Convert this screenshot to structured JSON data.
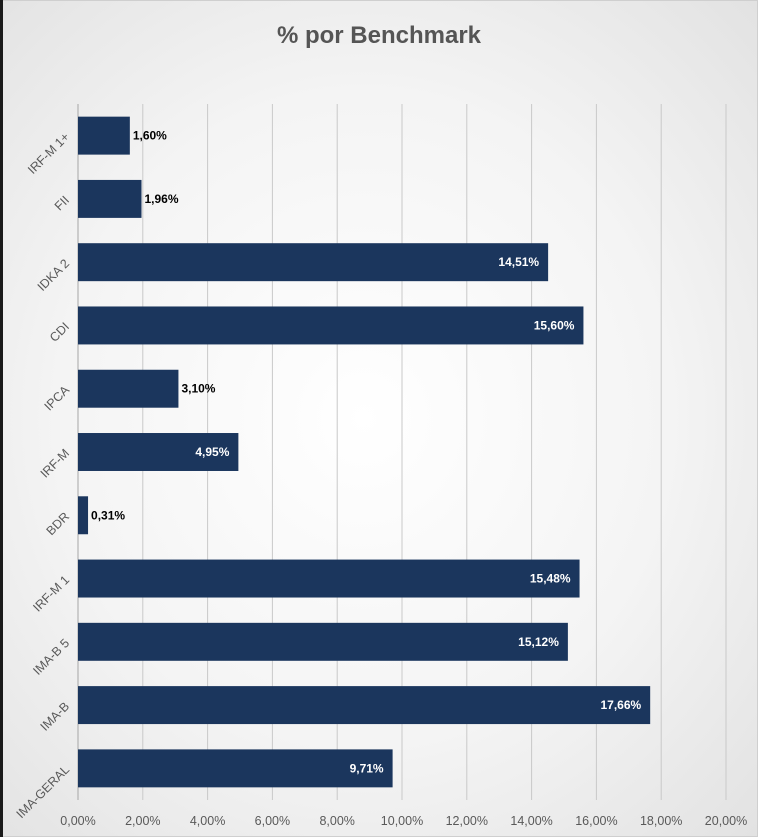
{
  "chart_data": {
    "type": "bar",
    "orientation": "horizontal",
    "title": "% por Benchmark",
    "categories": [
      "IRF-M 1+",
      "FII",
      "IDKA 2",
      "CDI",
      "IPCA",
      "IRF-M",
      "BDR",
      "IRF-M 1",
      "IMA-B 5",
      "IMA-B",
      "IMA-GERAL"
    ],
    "values": [
      1.6,
      1.96,
      14.51,
      15.6,
      3.1,
      4.95,
      0.31,
      15.48,
      15.12,
      17.66,
      9.71
    ],
    "data_labels": [
      "1,60%",
      "1,96%",
      "14,51%",
      "15,60%",
      "3,10%",
      "4,95%",
      "0,31%",
      "15,48%",
      "15,12%",
      "17,66%",
      "9,71%"
    ],
    "x_ticks": [
      "0,00%",
      "2,00%",
      "4,00%",
      "6,00%",
      "8,00%",
      "10,00%",
      "12,00%",
      "14,00%",
      "16,00%",
      "18,00%",
      "20,00%"
    ],
    "xlim": [
      0,
      20
    ],
    "grid": true,
    "bar_color": "#1b365d",
    "label_color_inside": "#ffffff",
    "label_color_outside": "#000000"
  }
}
